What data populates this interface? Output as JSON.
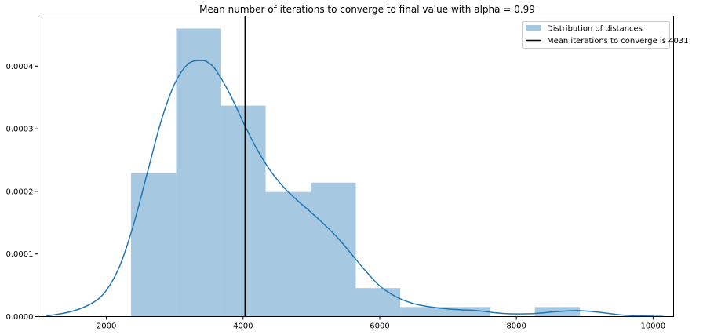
{
  "chart_data": {
    "type": "histogram",
    "title": "Mean number of iterations to converge to final value with alpha = 0.99",
    "xlabel": "",
    "ylabel": "",
    "xlim": [
      1000,
      10300
    ],
    "ylim": [
      0,
      0.00048
    ],
    "x_ticks": [
      2000,
      4000,
      6000,
      8000,
      10000
    ],
    "y_ticks": [
      0.0,
      0.0001,
      0.0002,
      0.0003,
      0.0004
    ],
    "x_tick_labels": [
      "2000",
      "4000",
      "6000",
      "8000",
      "10000"
    ],
    "y_tick_labels": [
      "0.0000",
      "0.0001",
      "0.0002",
      "0.0003",
      "0.0004"
    ],
    "histogram": {
      "name": "Distribution of distances",
      "color": "#a6c8e0",
      "bins": [
        {
          "x0": 2360,
          "x1": 3020,
          "value": 0.000229
        },
        {
          "x0": 3020,
          "x1": 3680,
          "value": 0.00046
        },
        {
          "x0": 3680,
          "x1": 4330,
          "value": 0.000337
        },
        {
          "x0": 4330,
          "x1": 4990,
          "value": 0.000199
        },
        {
          "x0": 4990,
          "x1": 5650,
          "value": 0.000214
        },
        {
          "x0": 5650,
          "x1": 6300,
          "value": 4.55e-05
        },
        {
          "x0": 6300,
          "x1": 6960,
          "value": 1.52e-05
        },
        {
          "x0": 6960,
          "x1": 7620,
          "value": 1.52e-05
        },
        {
          "x0": 7620,
          "x1": 8270,
          "value": 0.0
        },
        {
          "x0": 8270,
          "x1": 8930,
          "value": 1.52e-05
        }
      ]
    },
    "kde": {
      "color": "#1f77b4",
      "x": [
        1120,
        1500,
        1800,
        2000,
        2200,
        2400,
        2600,
        2800,
        3000,
        3200,
        3400,
        3500,
        3600,
        3800,
        4000,
        4200,
        4400,
        4600,
        4800,
        5000,
        5200,
        5400,
        5600,
        5800,
        6000,
        6200,
        6400,
        6600,
        7000,
        7400,
        7800,
        8200,
        8600,
        8900,
        9200,
        9600,
        10150
      ],
      "y": [
        8e-07,
        8.5e-06,
        2.2e-05,
        4.2e-05,
        8.2e-05,
        0.000148,
        0.00023,
        0.000312,
        0.000372,
        0.000404,
        0.000409,
        0.000405,
        0.000394,
        0.000357,
        0.000311,
        0.000268,
        0.000233,
        0.000206,
        0.000185,
        0.000166,
        0.000146,
        0.000124,
        9.8e-05,
        7.2e-05,
        4.9e-05,
        3.4e-05,
        2.4e-05,
        1.8e-05,
        1.2e-05,
        9.7e-06,
        5e-06,
        4.5e-06,
        8e-06,
        9.5e-06,
        7e-06,
        2e-06,
        3e-07
      ]
    },
    "mean_line": {
      "x": 4031,
      "name": "Mean iterations to converge is 4031",
      "color": "#000000"
    },
    "legend_position": "top-right",
    "grid": false
  }
}
